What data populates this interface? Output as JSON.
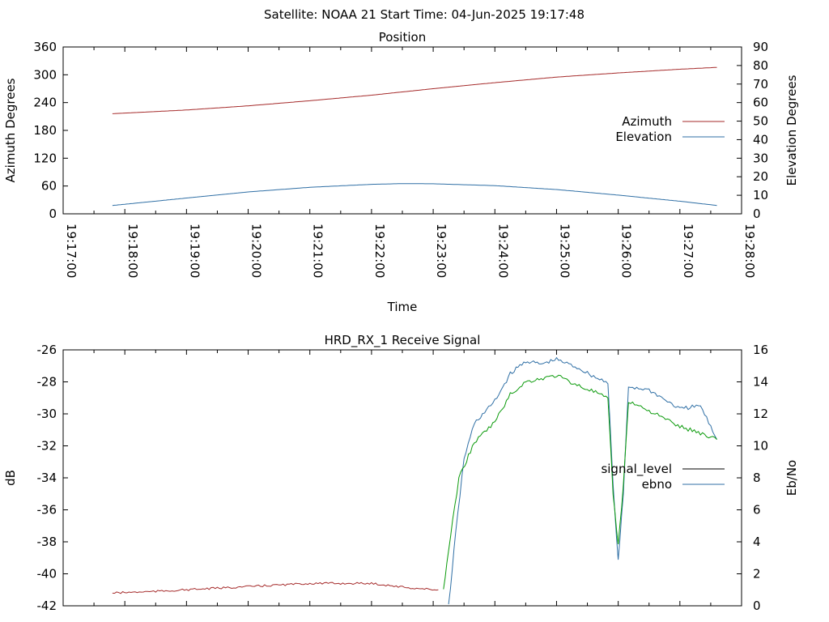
{
  "header": {
    "title": "Satellite: NOAA 21    Start Time: 04-Jun-2025 19:17:48"
  },
  "chart_data": [
    {
      "type": "line",
      "title": "Position",
      "xlabel": "Time",
      "ylabel": "Azimuth Degrees",
      "y2label": "Elevation Degrees",
      "ylim": [
        0,
        360
      ],
      "y2lim": [
        0,
        90
      ],
      "yticks": [
        "0",
        "60",
        "120",
        "180",
        "240",
        "300",
        "360"
      ],
      "y2ticks": [
        "0",
        "10",
        "20",
        "30",
        "40",
        "50",
        "60",
        "70",
        "80",
        "90"
      ],
      "xlim": [
        "19:17:00",
        "19:28:00"
      ],
      "xticks": [
        "19:17:00",
        "19:18:00",
        "19:19:00",
        "19:20:00",
        "19:21:00",
        "19:22:00",
        "19:23:00",
        "19:24:00",
        "19:25:00",
        "19:26:00",
        "19:27:00",
        "19:28:00"
      ],
      "legend_position": "right",
      "series": [
        {
          "name": "Azimuth",
          "axis": "y",
          "color": "#a52a2a",
          "x": [
            "19:17:48",
            "19:19:00",
            "19:20:00",
            "19:21:00",
            "19:22:00",
            "19:23:00",
            "19:24:00",
            "19:25:00",
            "19:26:00",
            "19:27:00",
            "19:27:36"
          ],
          "y": [
            216,
            224,
            233,
            244,
            256,
            270,
            283,
            295,
            304,
            312,
            316
          ]
        },
        {
          "name": "Elevation",
          "axis": "y2",
          "color": "#2f6fa5",
          "x": [
            "19:17:48",
            "19:19:00",
            "19:20:00",
            "19:21:00",
            "19:22:00",
            "19:22:30",
            "19:23:00",
            "19:24:00",
            "19:25:00",
            "19:26:00",
            "19:27:00",
            "19:27:36"
          ],
          "y": [
            4.5,
            8.5,
            11.8,
            14.3,
            15.9,
            16.3,
            16.2,
            15.2,
            13.1,
            10.1,
            6.8,
            4.5
          ]
        }
      ]
    },
    {
      "type": "line",
      "title": "HRD_RX_1 Receive Signal",
      "ylabel": "dB",
      "y2label": "Eb/No",
      "ylim": [
        -42,
        -26
      ],
      "y2lim": [
        0,
        16
      ],
      "yticks": [
        "-42",
        "-40",
        "-38",
        "-36",
        "-34",
        "-32",
        "-30",
        "-28",
        "-26"
      ],
      "y2ticks": [
        "0",
        "2",
        "4",
        "6",
        "8",
        "10",
        "12",
        "14",
        "16"
      ],
      "xlim": [
        "19:17:00",
        "19:28:00"
      ],
      "legend_position": "right",
      "series": [
        {
          "name": "signal_level",
          "axis": "y",
          "color": "#000000",
          "x": [],
          "y": []
        },
        {
          "name": "ebno",
          "axis": "y2",
          "color": "#2f6fa5",
          "x": [
            "19:23:15",
            "19:23:22",
            "19:23:30",
            "19:23:40",
            "19:24:00",
            "19:24:15",
            "19:24:30",
            "19:24:45",
            "19:25:00",
            "19:25:20",
            "19:25:40",
            "19:25:50",
            "19:25:55",
            "19:26:00",
            "19:26:05",
            "19:26:10",
            "19:26:30",
            "19:27:00",
            "19:27:20",
            "19:27:36"
          ],
          "y": [
            0,
            4.6,
            9.2,
            11.4,
            12.8,
            14.5,
            15.3,
            15.1,
            15.4,
            14.9,
            14.2,
            14.0,
            7.5,
            2.8,
            7.0,
            13.7,
            13.5,
            12.3,
            12.5,
            10.4
          ]
        },
        {
          "name": "",
          "axis": "y",
          "color": "#0a9a0a",
          "x": [
            "19:23:10",
            "19:23:15",
            "19:23:25",
            "19:23:40",
            "19:24:00",
            "19:24:15",
            "19:24:30",
            "19:24:45",
            "19:25:00",
            "19:25:20",
            "19:25:40",
            "19:25:50",
            "19:25:55",
            "19:26:00",
            "19:26:05",
            "19:26:10",
            "19:26:30",
            "19:27:00",
            "19:27:20",
            "19:27:36"
          ],
          "y": [
            -41.0,
            -38.5,
            -34.0,
            -31.8,
            -30.5,
            -28.8,
            -28.0,
            -27.8,
            -27.6,
            -28.2,
            -28.7,
            -29.1,
            -35.0,
            -38.2,
            -34.5,
            -29.2,
            -29.8,
            -30.8,
            -31.2,
            -31.6
          ]
        },
        {
          "name": "",
          "axis": "y",
          "color": "#a52a2a",
          "x": [
            "19:17:48",
            "19:18:30",
            "19:19:30",
            "19:20:30",
            "19:21:00",
            "19:22:00",
            "19:22:40",
            "19:23:05"
          ],
          "y": [
            -41.2,
            -41.1,
            -40.9,
            -40.7,
            -40.6,
            -40.6,
            -40.9,
            -41.0
          ]
        }
      ]
    }
  ]
}
